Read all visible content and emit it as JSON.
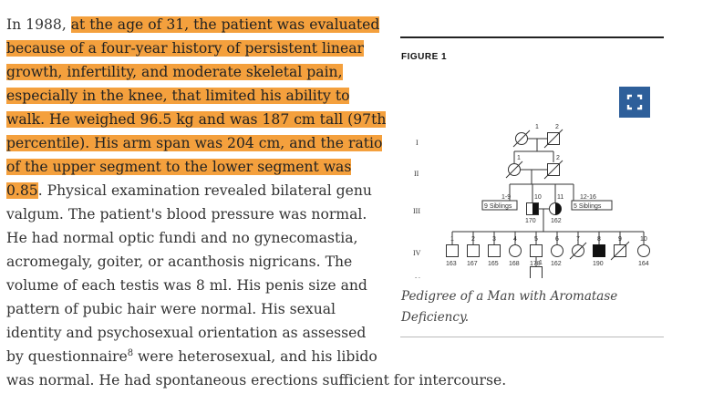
{
  "article": {
    "lines": [
      [
        "In 1988, ",
        "at the age of 31, the patient was evaluated"
      ],
      [
        "",
        "because of a four-year history of persistent linear"
      ],
      [
        "",
        "growth, infertility, and moderate skeletal pain,"
      ],
      [
        "",
        "especially in the knee, that limited his ability to"
      ],
      [
        "",
        "walk. He weighed 96.5 kg and was 187 cm tall (97th"
      ],
      [
        "",
        "percentile). His arm span was 204 cm, and the ratio"
      ],
      [
        "",
        "of the upper segment to the lower segment was"
      ],
      [
        "",
        "0.85",
        ". Physical examination revealed bilateral genu"
      ],
      [
        "valgum. The patient's blood pressure was normal.",
        ""
      ],
      [
        "He had normal optic fundi and no gynecomastia,",
        ""
      ],
      [
        "acromegaly, goiter, or acanthosis nigricans. The",
        ""
      ],
      [
        "volume of each testis was 8 ml. His penis size and",
        ""
      ],
      [
        "pattern of pubic hair were normal. His sexual",
        ""
      ],
      [
        "identity and psychosexual orientation as assessed",
        ""
      ],
      [
        "by questionnaire",
        "8",
        " were heterosexual, and his libido"
      ],
      [
        "was normal. He had spontaneous erections sufficient for intercourse.",
        ""
      ]
    ],
    "reference_number": "8"
  },
  "figure": {
    "label": "FIGURE 1",
    "caption": "Pedigree of a Man with Aromatase Deficiency.",
    "expand_icon": "expand-icon",
    "accent_color": "#2e5f9a",
    "highlight_color": "#f4a03d",
    "pedigree": {
      "generations": [
        "I",
        "II",
        "III",
        "IV",
        "V"
      ],
      "gen1_numbers": [
        "1",
        "2"
      ],
      "gen2_numbers": [
        "1",
        "2"
      ],
      "gen3_numbers": [
        "1-9",
        "10",
        "11",
        "12-16"
      ],
      "gen3_sibling_boxes": [
        "9 Siblings",
        "5 Siblings"
      ],
      "gen3_heights": [
        "170",
        "162"
      ],
      "gen4_numbers": [
        "1",
        "2",
        "3",
        "4",
        "5",
        "6",
        "7",
        "8",
        "9",
        "10"
      ],
      "gen4_heights": [
        "163",
        "167",
        "165",
        "168",
        "178",
        "162",
        "190",
        "164"
      ],
      "gen5_numbers": [
        "1"
      ],
      "gen5_heights": [
        "174"
      ]
    }
  }
}
